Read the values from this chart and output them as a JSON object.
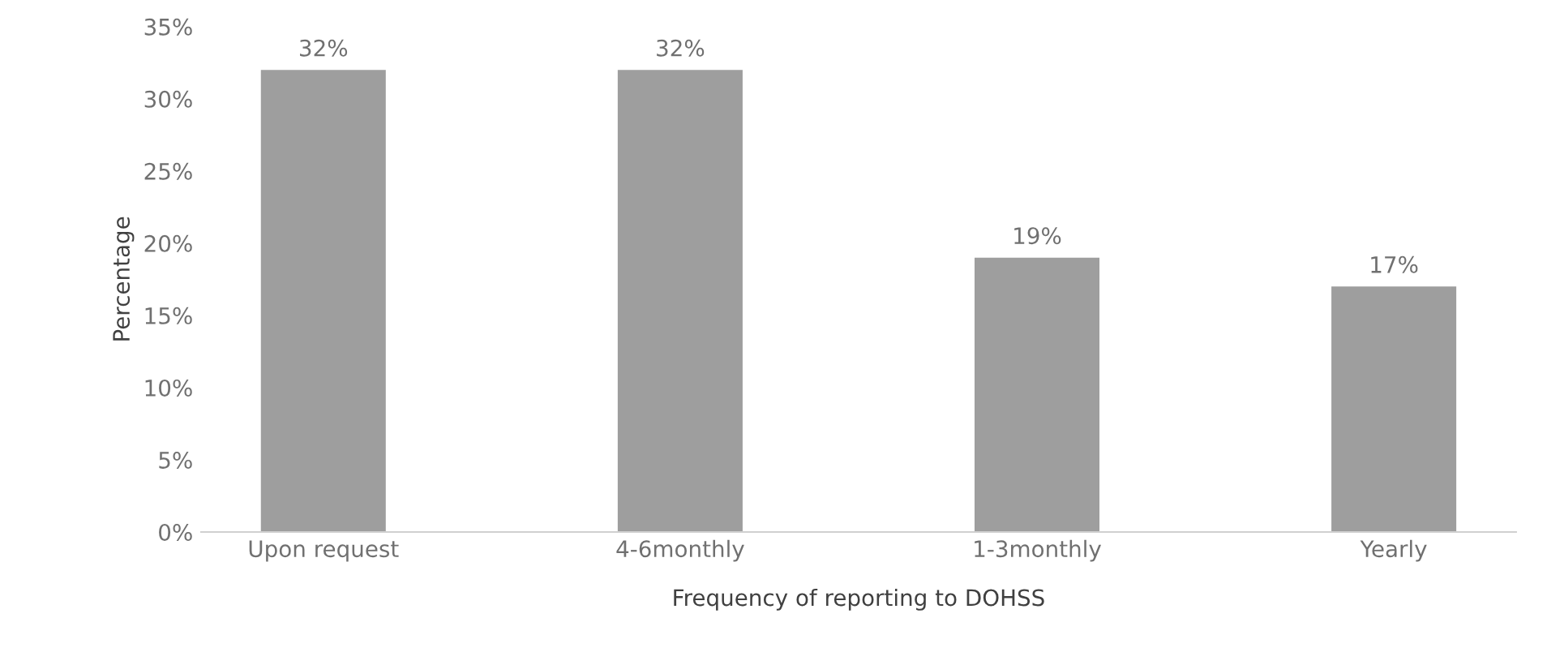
{
  "chart_data": {
    "type": "bar",
    "xlabel": "Frequency of reporting to DOHSS",
    "ylabel": "Percentage",
    "categories": [
      "Upon request",
      "4-6monthly",
      "1-3monthly",
      "Yearly"
    ],
    "values": [
      32,
      32,
      19,
      17
    ],
    "value_labels": [
      "32%",
      "32%",
      "19%",
      "17%"
    ],
    "color": "#9e9e9e",
    "ylim": [
      0,
      35
    ],
    "yticks": [
      {
        "value": 0,
        "label": "0%"
      },
      {
        "value": 5,
        "label": "5%"
      },
      {
        "value": 10,
        "label": "10%"
      },
      {
        "value": 15,
        "label": "15%"
      },
      {
        "value": 20,
        "label": "20%"
      },
      {
        "value": 25,
        "label": "25%"
      },
      {
        "value": 30,
        "label": "30%"
      },
      {
        "value": 35,
        "label": "35%"
      }
    ],
    "grid": false
  }
}
